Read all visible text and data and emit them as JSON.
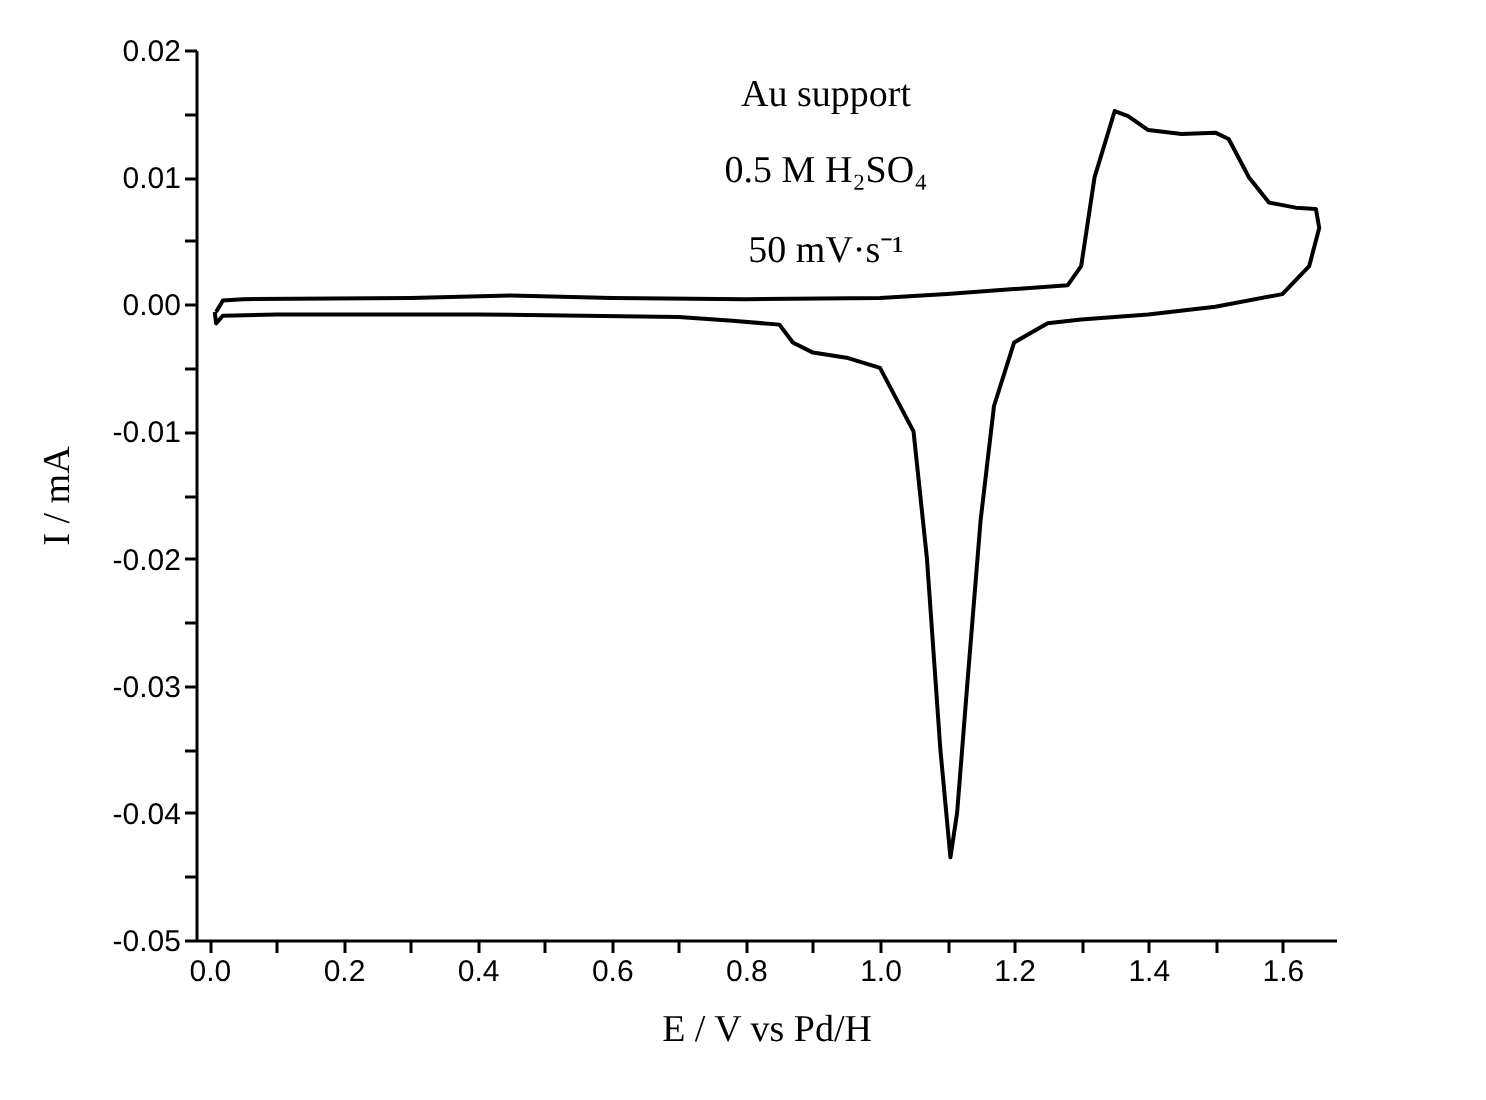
{
  "chart_data": {
    "type": "line",
    "xlabel": "E  /  V vs Pd/H",
    "ylabel": "I  / mA",
    "annotations": [
      "Au support",
      "0.5 M H₂SO₄",
      "50 mV·s⁻¹"
    ],
    "x": [
      0.01,
      0.02,
      0.05,
      0.3,
      0.45,
      0.6,
      0.8,
      1.0,
      1.1,
      1.2,
      1.28,
      1.3,
      1.32,
      1.35,
      1.37,
      1.4,
      1.45,
      1.5,
      1.52,
      1.55,
      1.58,
      1.62,
      1.65,
      1.655,
      1.64,
      1.6,
      1.5,
      1.4,
      1.3,
      1.25,
      1.2,
      1.17,
      1.15,
      1.13,
      1.115,
      1.105,
      1.09,
      1.07,
      1.05,
      1.0,
      0.95,
      0.9,
      0.87,
      0.85,
      0.78,
      0.7,
      0.4,
      0.1,
      0.02,
      0.01,
      0.008
    ],
    "series": [
      {
        "color": "#000000",
        "values": [
          -0.0006,
          0.0003,
          0.0004,
          0.0005,
          0.0007,
          0.0005,
          0.0004,
          0.0005,
          0.0008,
          0.0012,
          0.0015,
          0.003,
          0.01,
          0.0152,
          0.0148,
          0.0137,
          0.0134,
          0.0135,
          0.013,
          0.01,
          0.008,
          0.0076,
          0.0075,
          0.006,
          0.003,
          0.0008,
          -0.0002,
          -0.0008,
          -0.0012,
          -0.0015,
          -0.003,
          -0.008,
          -0.017,
          -0.03,
          -0.04,
          -0.0435,
          -0.035,
          -0.02,
          -0.01,
          -0.005,
          -0.0042,
          -0.0038,
          -0.003,
          -0.0016,
          -0.0013,
          -0.001,
          -0.0008,
          -0.0008,
          -0.0009,
          -0.0015,
          -0.0006
        ]
      }
    ],
    "xlim": [
      -0.02,
      1.68
    ],
    "xticks": [
      {
        "value": 0,
        "label": "0.0"
      },
      {
        "value": 0.1,
        "label": null
      },
      {
        "value": 0.2,
        "label": "0.2"
      },
      {
        "value": 0.3,
        "label": null
      },
      {
        "value": 0.4,
        "label": "0.4"
      },
      {
        "value": 0.5,
        "label": null
      },
      {
        "value": 0.6,
        "label": "0.6"
      },
      {
        "value": 0.7,
        "label": null
      },
      {
        "value": 0.8,
        "label": "0.8"
      },
      {
        "value": 0.9,
        "label": null
      },
      {
        "value": 1.0,
        "label": "1.0"
      },
      {
        "value": 1.1,
        "label": null
      },
      {
        "value": 1.2,
        "label": "1.2"
      },
      {
        "value": 1.3,
        "label": null
      },
      {
        "value": 1.4,
        "label": "1.4"
      },
      {
        "value": 1.5,
        "label": null
      },
      {
        "value": 1.6,
        "label": "1.6"
      }
    ],
    "ylim": [
      -0.05,
      0.02
    ],
    "yticks": [
      {
        "value": -0.05,
        "label": "-0.05"
      },
      {
        "value": -0.045,
        "label": null
      },
      {
        "value": -0.04,
        "label": "-0.04"
      },
      {
        "value": -0.035,
        "label": null
      },
      {
        "value": -0.03,
        "label": "-0.03"
      },
      {
        "value": -0.025,
        "label": null
      },
      {
        "value": -0.02,
        "label": "-0.02"
      },
      {
        "value": -0.015,
        "label": null
      },
      {
        "value": -0.01,
        "label": "-0.01"
      },
      {
        "value": -0.005,
        "label": null
      },
      {
        "value": 0,
        "label": "0.00"
      },
      {
        "value": 0.005,
        "label": null
      },
      {
        "value": 0.01,
        "label": "0.01"
      },
      {
        "value": 0.015,
        "label": null
      },
      {
        "value": 0.02,
        "label": "0.02"
      }
    ],
    "grid": false,
    "marker": "none",
    "line_style": "solid"
  }
}
